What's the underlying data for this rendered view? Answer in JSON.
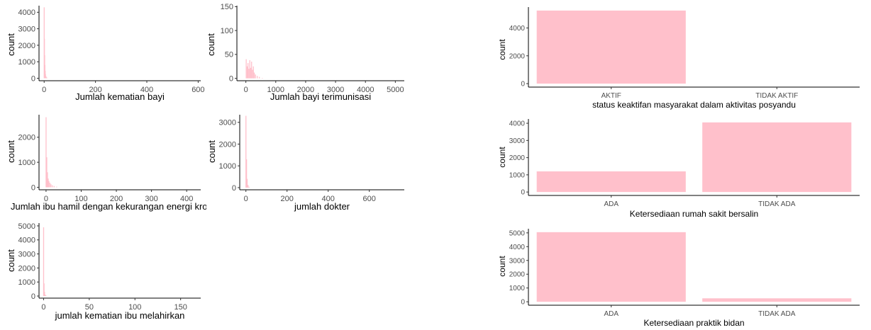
{
  "colors": {
    "fill": "#ffc0cb",
    "axis": "#000000",
    "tick_text": "#4d4d4d"
  },
  "chart_data": [
    {
      "type": "histogram",
      "xlabel": "Jumlah kematian bayi",
      "ylabel": "count",
      "xlim": [
        -20,
        610
      ],
      "ylim": [
        -150,
        4400
      ],
      "xticks": [
        0,
        200,
        400,
        600
      ],
      "yticks": [
        0,
        1000,
        2000,
        3000,
        4000
      ],
      "bins": [
        {
          "x": 0,
          "count": 4300
        },
        {
          "x": 1,
          "count": 2400
        },
        {
          "x": 2,
          "count": 1400
        },
        {
          "x": 3,
          "count": 800
        },
        {
          "x": 4,
          "count": 450
        },
        {
          "x": 5,
          "count": 250
        },
        {
          "x": 7,
          "count": 120
        },
        {
          "x": 10,
          "count": 50
        }
      ]
    },
    {
      "type": "histogram",
      "xlabel": "Jumlah bayi terimunisasi",
      "ylabel": "count",
      "xlim": [
        -300,
        5300
      ],
      "ylim": [
        -5,
        152
      ],
      "xticks": [
        0,
        1000,
        2000,
        3000,
        4000,
        5000
      ],
      "yticks": [
        0,
        50,
        100,
        150
      ],
      "bins": [
        {
          "x": 10,
          "count": 40
        },
        {
          "x": 40,
          "count": 25
        },
        {
          "x": 70,
          "count": 32
        },
        {
          "x": 100,
          "count": 20
        },
        {
          "x": 130,
          "count": 38
        },
        {
          "x": 160,
          "count": 22
        },
        {
          "x": 190,
          "count": 35
        },
        {
          "x": 220,
          "count": 18
        },
        {
          "x": 250,
          "count": 25
        },
        {
          "x": 280,
          "count": 12
        },
        {
          "x": 320,
          "count": 8
        },
        {
          "x": 380,
          "count": 5
        },
        {
          "x": 450,
          "count": 3
        },
        {
          "x": 550,
          "count": 1
        }
      ]
    },
    {
      "type": "histogram",
      "xlabel": "Jumlah ibu hamil dengan kekurangan energi kro",
      "ylabel": "count",
      "xlim": [
        -20,
        440
      ],
      "ylim": [
        -100,
        2900
      ],
      "xticks": [
        0,
        100,
        200,
        300,
        400
      ],
      "yticks": [
        0,
        1000,
        2000
      ],
      "bins": [
        {
          "x": 0,
          "count": 2800
        },
        {
          "x": 2,
          "count": 1200
        },
        {
          "x": 4,
          "count": 600
        },
        {
          "x": 6,
          "count": 350
        },
        {
          "x": 8,
          "count": 250
        },
        {
          "x": 11,
          "count": 180
        },
        {
          "x": 14,
          "count": 120
        },
        {
          "x": 18,
          "count": 80
        },
        {
          "x": 23,
          "count": 50
        },
        {
          "x": 30,
          "count": 25
        }
      ]
    },
    {
      "type": "histogram",
      "xlabel": "jumlah dokter",
      "ylabel": "count",
      "xlim": [
        -30,
        770
      ],
      "ylim": [
        -100,
        3350
      ],
      "xticks": [
        0,
        200,
        400,
        600
      ],
      "yticks": [
        0,
        1000,
        2000,
        3000
      ],
      "bins": [
        {
          "x": 0,
          "count": 3300
        },
        {
          "x": 3,
          "count": 1300
        },
        {
          "x": 6,
          "count": 400
        },
        {
          "x": 10,
          "count": 120
        },
        {
          "x": 15,
          "count": 40
        }
      ]
    },
    {
      "type": "histogram",
      "xlabel": "jumlah kematian ibu melahirkan",
      "ylabel": "count",
      "xlim": [
        -5,
        172
      ],
      "ylim": [
        -150,
        5200
      ],
      "xticks": [
        0,
        50,
        100,
        150
      ],
      "yticks": [
        0,
        1000,
        2000,
        3000,
        4000,
        5000
      ],
      "bins": [
        {
          "x": 0,
          "count": 4900
        },
        {
          "x": 0.5,
          "count": 900
        },
        {
          "x": 1,
          "count": 300
        },
        {
          "x": 1.5,
          "count": 120
        },
        {
          "x": 2.5,
          "count": 50
        }
      ]
    },
    {
      "type": "bar",
      "categories": [
        "AKTIF",
        "TIDAK AKTIF"
      ],
      "values": [
        5250,
        0
      ],
      "xlabel": "status keaktifan masyarakat dalam aktivitas posyandu",
      "ylabel": "count",
      "ylim": [
        -250,
        5500
      ],
      "yticks": [
        0,
        2000,
        4000
      ]
    },
    {
      "type": "bar",
      "categories": [
        "ADA",
        "TIDAK ADA"
      ],
      "values": [
        1200,
        4050
      ],
      "xlabel": "Ketersediaan rumah sakit bersalin",
      "ylabel": "count",
      "ylim": [
        -200,
        4250
      ],
      "yticks": [
        0,
        1000,
        2000,
        3000,
        4000
      ]
    },
    {
      "type": "bar",
      "categories": [
        "ADA",
        "TIDAK ADA"
      ],
      "values": [
        5050,
        250
      ],
      "xlabel": "Ketersediaan praktik bidan",
      "ylabel": "count",
      "ylim": [
        -250,
        5300
      ],
      "yticks": [
        0,
        1000,
        2000,
        3000,
        4000,
        5000
      ]
    }
  ]
}
